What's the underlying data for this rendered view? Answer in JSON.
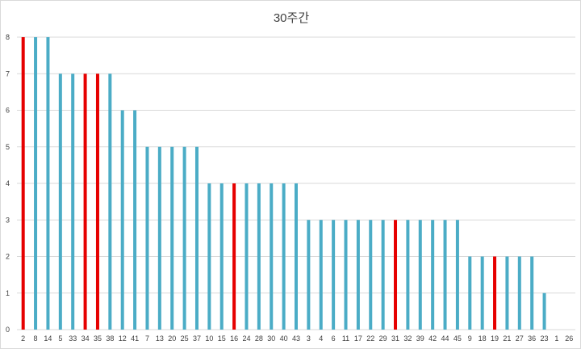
{
  "chart_data": {
    "type": "bar",
    "title": "30주간",
    "xlabel": "",
    "ylabel": "",
    "ylim": [
      0,
      8
    ],
    "yticks": [
      0,
      1,
      2,
      3,
      4,
      5,
      6,
      7,
      8
    ],
    "grid": true,
    "legend": "none",
    "categories": [
      "2",
      "8",
      "14",
      "5",
      "33",
      "34",
      "35",
      "38",
      "12",
      "41",
      "7",
      "13",
      "20",
      "25",
      "37",
      "10",
      "15",
      "16",
      "24",
      "28",
      "30",
      "40",
      "43",
      "3",
      "4",
      "6",
      "11",
      "17",
      "22",
      "29",
      "31",
      "32",
      "39",
      "42",
      "44",
      "45",
      "9",
      "18",
      "19",
      "21",
      "27",
      "36",
      "23",
      "1",
      "26"
    ],
    "values": [
      8,
      8,
      8,
      7,
      7,
      7,
      7,
      7,
      6,
      6,
      5,
      5,
      5,
      5,
      5,
      4,
      4,
      4,
      4,
      4,
      4,
      4,
      4,
      3,
      3,
      3,
      3,
      3,
      3,
      3,
      3,
      3,
      3,
      3,
      3,
      3,
      2,
      2,
      2,
      2,
      2,
      2,
      1,
      0,
      0
    ],
    "highlighted": [
      "2",
      "34",
      "35",
      "16",
      "31",
      "19"
    ],
    "colors": {
      "default": "#4bacc6",
      "highlight": "#e60000",
      "grid": "#d9d9d9",
      "text": "#404040"
    }
  }
}
